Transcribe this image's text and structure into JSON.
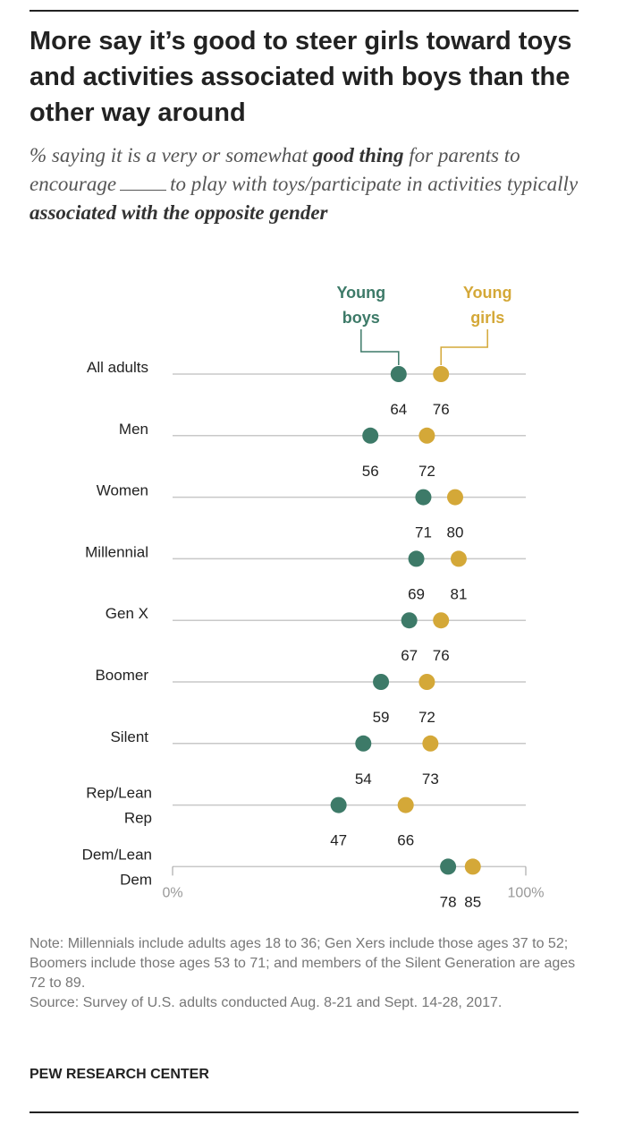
{
  "title": "More say it’s good to steer girls toward toys and activities associated with boys than the other way around",
  "subtitle": {
    "part1": "% saying it is a very or somewhat ",
    "bold1": "good thing",
    "part2": " for parents to encourage",
    "part3": "to play with toys/participate in activities typically ",
    "bold2": "associated with the opposite gender"
  },
  "note": "Note: Millennials include adults ages 18 to 36; Gen Xers include those ages 37 to 52; Boomers include those ages 53 to 71; and members of the Silent Generation are ages 72 to 89.",
  "source": "Source: Survey of U.S. adults conducted Aug. 8-21 and Sept. 14-28, 2017.",
  "brand": "PEW RESEARCH CENTER",
  "colors": {
    "boys": "#3d7a68",
    "girls": "#d4a838",
    "line": "#c8c8c8"
  },
  "chart_data": {
    "type": "scatter",
    "style": "dot plot",
    "xlim": [
      0,
      100
    ],
    "x_tick_labels": [
      "0%",
      "100%"
    ],
    "legend": {
      "boys": "Young boys",
      "girls": "Young girls"
    },
    "categories": [
      "All adults",
      "Men",
      "Women",
      "Millennial",
      "Gen X",
      "Boomer",
      "Silent",
      "Rep/Lean Rep",
      "Dem/Lean Dem"
    ],
    "series": [
      {
        "name": "Young boys",
        "values": [
          64,
          56,
          71,
          69,
          67,
          59,
          54,
          47,
          78
        ]
      },
      {
        "name": "Young girls",
        "values": [
          76,
          72,
          80,
          81,
          76,
          72,
          73,
          66,
          85
        ]
      }
    ]
  }
}
